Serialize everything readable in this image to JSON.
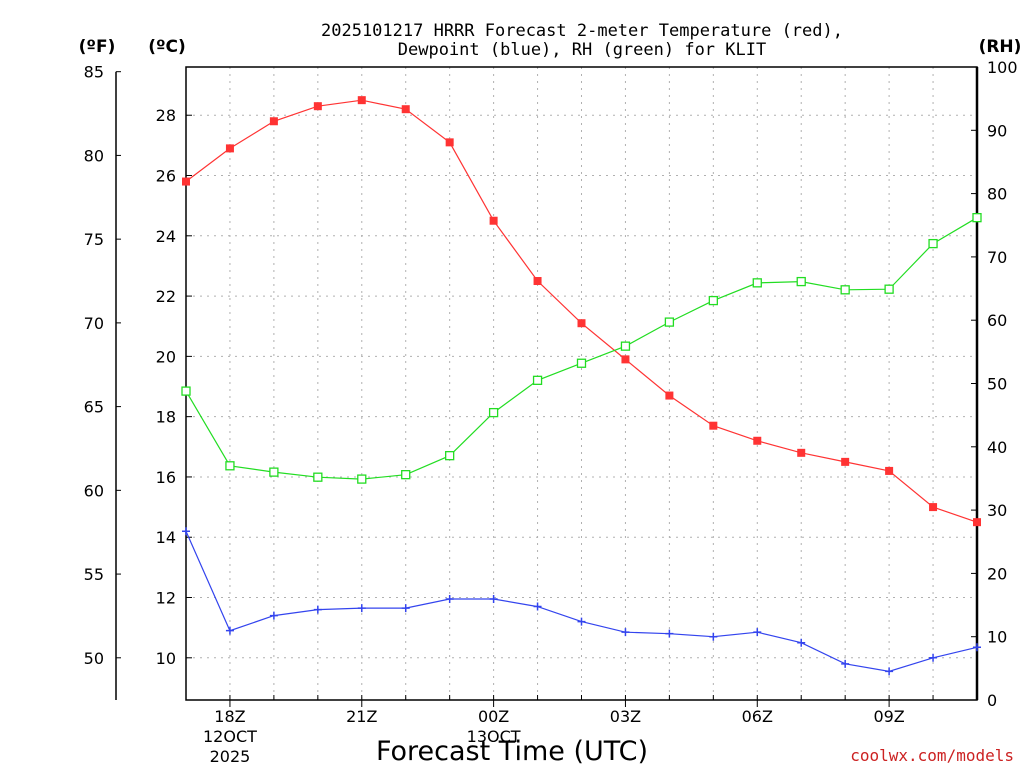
{
  "chart_data": {
    "type": "line",
    "title_line1": "2025101217 HRRR Forecast 2-meter Temperature (red),",
    "title_line2": "Dewpoint (blue), RH (green) for KLIT",
    "xlabel": "Forecast Time (UTC)",
    "unit_f": "(ºF)",
    "unit_c": "(ºC)",
    "unit_rh": "(RH)",
    "x_hours": [
      17,
      18,
      19,
      20,
      21,
      22,
      23,
      24,
      25,
      26,
      27,
      28,
      29,
      30,
      31,
      32,
      33,
      34,
      35
    ],
    "x_ticks": [
      {
        "hour": 18,
        "label": "18Z",
        "date1": "12OCT",
        "date2": "2025"
      },
      {
        "hour": 21,
        "label": "21Z"
      },
      {
        "hour": 24,
        "label": "00Z",
        "date1": "13OCT"
      },
      {
        "hour": 27,
        "label": "03Z"
      },
      {
        "hour": 30,
        "label": "06Z"
      },
      {
        "hour": 33,
        "label": "09Z"
      }
    ],
    "celsius_ticks": [
      "10",
      "12",
      "14",
      "16",
      "18",
      "20",
      "22",
      "24",
      "26",
      "28"
    ],
    "fahrenheit_ticks": [
      "50",
      "55",
      "60",
      "65",
      "70",
      "75",
      "80",
      "85"
    ],
    "rh_ticks": [
      "0",
      "10",
      "20",
      "30",
      "40",
      "50",
      "60",
      "70",
      "80",
      "90",
      "100"
    ],
    "ylim_c": [
      8.6,
      29.6
    ],
    "ylim_rh": [
      0,
      100
    ],
    "series": [
      {
        "name": "Temperature",
        "axis": "c",
        "color": "#ff3333",
        "marker": "filled-square",
        "values": [
          25.8,
          26.9,
          27.8,
          28.3,
          28.5,
          28.2,
          27.1,
          24.5,
          22.5,
          21.1,
          19.9,
          18.7,
          17.7,
          17.2,
          16.8,
          16.5,
          16.2,
          15.0,
          14.5
        ]
      },
      {
        "name": "Dewpoint",
        "axis": "c",
        "color": "#3344ee",
        "marker": "plus",
        "values": [
          14.2,
          10.9,
          11.4,
          11.6,
          11.65,
          11.65,
          11.95,
          11.95,
          11.7,
          11.2,
          10.85,
          10.8,
          10.7,
          10.85,
          10.5,
          9.8,
          9.55,
          10.0,
          10.35
        ]
      },
      {
        "name": "RH",
        "axis": "rh",
        "color": "#22dd22",
        "marker": "open-square",
        "values": [
          48.8,
          37.0,
          36.0,
          35.2,
          34.9,
          35.6,
          38.6,
          45.4,
          50.5,
          53.2,
          55.9,
          59.7,
          63.1,
          65.9,
          66.1,
          64.8,
          64.9,
          72.1,
          76.2
        ]
      }
    ]
  },
  "credit": "coolwx.com/models",
  "colors": {
    "credit": "#cc2222",
    "axis": "#000000",
    "grid": "#b0b0b0"
  }
}
